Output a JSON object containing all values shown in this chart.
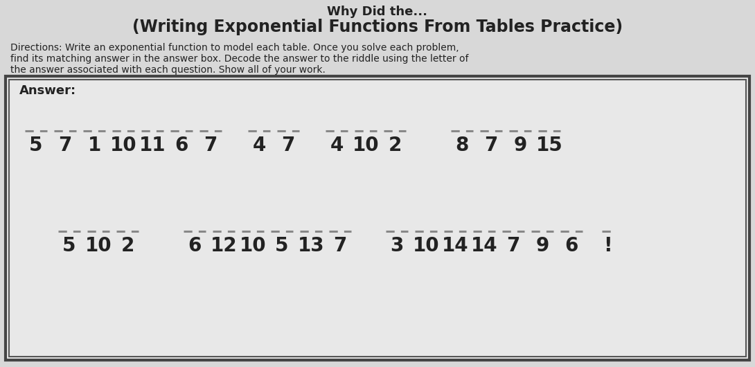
{
  "bg_color": "#d8d8d8",
  "box_bg": "#e8e8e8",
  "title_cutoff": "Why Did the...",
  "title_main": "(Writing Exponential Functions From Tables Practice)",
  "directions_line1": "Directions: Write an exponential function to model each table. Once you solve each problem,",
  "directions_line2": "find its matching answer in the answer box. Decode the answer to the riddle using the letter of",
  "directions_line3": "the answer associated with each question. Show all of your work.",
  "answer_label": "Answer:",
  "row1": {
    "group1": {
      "nums": [
        "5",
        "7",
        "1",
        "10",
        "11",
        "6",
        "7"
      ],
      "ol": [
        1,
        1,
        1,
        1,
        1,
        1,
        1
      ]
    },
    "group2": {
      "nums": [
        "4",
        "7"
      ],
      "ol": [
        1,
        1
      ]
    },
    "group3": {
      "nums": [
        "4",
        "10",
        "2"
      ],
      "ol": [
        1,
        1,
        1
      ]
    },
    "group4": {
      "nums": [
        "8",
        "7",
        "9",
        "15"
      ],
      "ol": [
        1,
        1,
        1,
        1
      ]
    }
  },
  "row2": {
    "group1": {
      "nums": [
        "5",
        "10",
        "2"
      ],
      "ol": [
        1,
        1,
        1
      ]
    },
    "group2": {
      "nums": [
        "6",
        "12",
        "10",
        "5",
        "13",
        "7"
      ],
      "ol": [
        1,
        1,
        1,
        1,
        1,
        1
      ]
    },
    "group3": {
      "nums": [
        "3",
        "10",
        "14",
        "14",
        "7",
        "9",
        "6"
      ],
      "ol": [
        1,
        1,
        1,
        1,
        1,
        1,
        1
      ]
    },
    "excl": "!"
  },
  "text_color": "#222222",
  "overline_color": "#888888",
  "num_fontsize": 20,
  "num_bold": true,
  "ans_fontsize": 13,
  "dir_fontsize": 10,
  "title_fontsize": 17,
  "box_border_color": "#444444",
  "box_inner_border_color": "#555555"
}
